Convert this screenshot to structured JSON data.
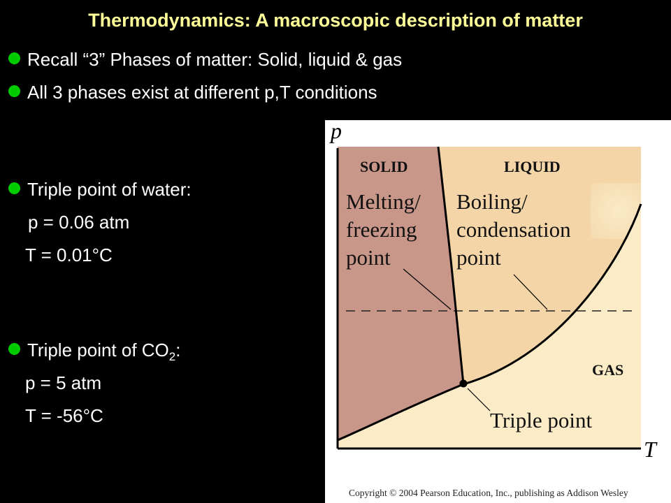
{
  "slide": {
    "title": "Thermodynamics: A macroscopic description of matter",
    "bullets": [
      "Recall “3” Phases of matter: Solid, liquid & gas",
      "All 3 phases exist at different p,T conditions"
    ],
    "water": {
      "heading": "Triple point of water:",
      "pressure": "p = 0.06 atm",
      "temperature": "T = 0.01°C"
    },
    "co2": {
      "heading_pre": "Triple point of CO",
      "heading_sub": "2",
      "heading_post": ":",
      "pressure": "p = 5 atm",
      "temperature": "T = -56°C"
    }
  },
  "diagram": {
    "axis_p": "p",
    "axis_t": "T",
    "region_solid": "SOLID",
    "region_liquid": "LIQUID",
    "region_gas": "GAS",
    "melting_line1": "Melting/",
    "melting_line2": "freezing",
    "melting_line3": "point",
    "boiling_line1": "Boiling/",
    "boiling_line2": "condensation",
    "boiling_line3": "point",
    "triple_label": "Triple point",
    "copyright": "Copyright © 2004 Pearson Education, Inc., publishing as Addison Wesley",
    "colors": {
      "solid": "#c9978a",
      "liquid": "#f3d5a8",
      "gas": "#fbebc6"
    }
  }
}
